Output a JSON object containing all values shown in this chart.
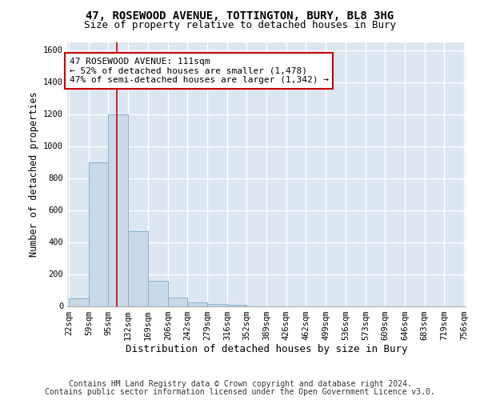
{
  "title_line1": "47, ROSEWOOD AVENUE, TOTTINGTON, BURY, BL8 3HG",
  "title_line2": "Size of property relative to detached houses in Bury",
  "xlabel": "Distribution of detached houses by size in Bury",
  "ylabel": "Number of detached properties",
  "bar_edges": [
    22,
    59,
    95,
    132,
    169,
    206,
    242,
    279,
    316,
    352,
    389,
    426,
    462,
    499,
    536,
    573,
    609,
    646,
    683,
    719,
    756
  ],
  "bar_heights": [
    50,
    900,
    1200,
    470,
    160,
    55,
    25,
    15,
    10,
    0,
    0,
    0,
    0,
    0,
    0,
    0,
    0,
    0,
    0,
    0
  ],
  "bar_color": "#c9d9e8",
  "bar_edge_color": "#8ab0c8",
  "vline_x": 111,
  "vline_color": "#cc0000",
  "annotation_text": "47 ROSEWOOD AVENUE: 111sqm\n← 52% of detached houses are smaller (1,478)\n47% of semi-detached houses are larger (1,342) →",
  "annotation_box_color": "#cc0000",
  "ylim": [
    0,
    1650
  ],
  "yticks": [
    0,
    200,
    400,
    600,
    800,
    1000,
    1200,
    1400,
    1600
  ],
  "background_color": "#dce6f0",
  "grid_color": "#ffffff",
  "fig_background": "#ffffff",
  "footer_line1": "Contains HM Land Registry data © Crown copyright and database right 2024.",
  "footer_line2": "Contains public sector information licensed under the Open Government Licence v3.0.",
  "title_fontsize": 10,
  "subtitle_fontsize": 9,
  "axis_label_fontsize": 8.5,
  "tick_fontsize": 7.5,
  "annotation_fontsize": 8,
  "footer_fontsize": 7
}
